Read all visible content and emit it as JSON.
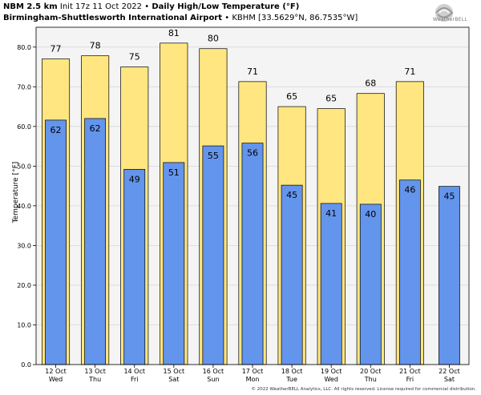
{
  "header": {
    "model": "NBM 2.5 km",
    "init": "Init 17z 11 Oct 2022",
    "sep": "•",
    "title": "Daily High/Low Temperature (°F)",
    "station": "Birmingham-Shuttlesworth International Airport",
    "station_meta": "KBHM [33.5629°N, 86.7535°W]"
  },
  "logo": {
    "text": "WeatherBELL",
    "icon": "weatherbell-swirl-logo"
  },
  "footer": {
    "copyright": "© 2022 WeatherBELL Analytics, LLC. All rights reserved. License required for commercial distribution."
  },
  "colors": {
    "high": "#ffe680",
    "low": "#6495ed",
    "plot_bg": "#f4f4f4",
    "grid": "#d8d8d8"
  },
  "chart_data": {
    "type": "bar",
    "ylabel": "Temperature [°F]",
    "ylim": [
      0,
      85
    ],
    "yticks": [
      "0.0",
      "10.0",
      "20.0",
      "30.0",
      "40.0",
      "50.0",
      "60.0",
      "70.0",
      "80.0"
    ],
    "grid": true,
    "categories": [
      {
        "date": "12 Oct",
        "day": "Wed"
      },
      {
        "date": "13 Oct",
        "day": "Thu"
      },
      {
        "date": "14 Oct",
        "day": "Fri"
      },
      {
        "date": "15 Oct",
        "day": "Sat"
      },
      {
        "date": "16 Oct",
        "day": "Sun"
      },
      {
        "date": "17 Oct",
        "day": "Mon"
      },
      {
        "date": "18 Oct",
        "day": "Tue"
      },
      {
        "date": "19 Oct",
        "day": "Wed"
      },
      {
        "date": "20 Oct",
        "day": "Thu"
      },
      {
        "date": "21 Oct",
        "day": "Fri"
      },
      {
        "date": "22 Oct",
        "day": "Sat"
      }
    ],
    "series": [
      {
        "values": [
          77,
          77.8,
          75,
          81,
          79.6,
          71.3,
          65,
          64.5,
          68.3,
          71.3,
          null
        ],
        "labels": [
          "77",
          "78",
          "75",
          "81",
          "80",
          "71",
          "65",
          "65",
          "68",
          "71",
          ""
        ]
      },
      {
        "values": [
          61.6,
          62,
          49.2,
          50.9,
          55.1,
          55.8,
          45.2,
          40.6,
          40.4,
          46.5,
          44.9
        ],
        "labels": [
          "62",
          "62",
          "49",
          "51",
          "55",
          "56",
          "45",
          "41",
          "40",
          "46",
          "45"
        ]
      }
    ]
  }
}
